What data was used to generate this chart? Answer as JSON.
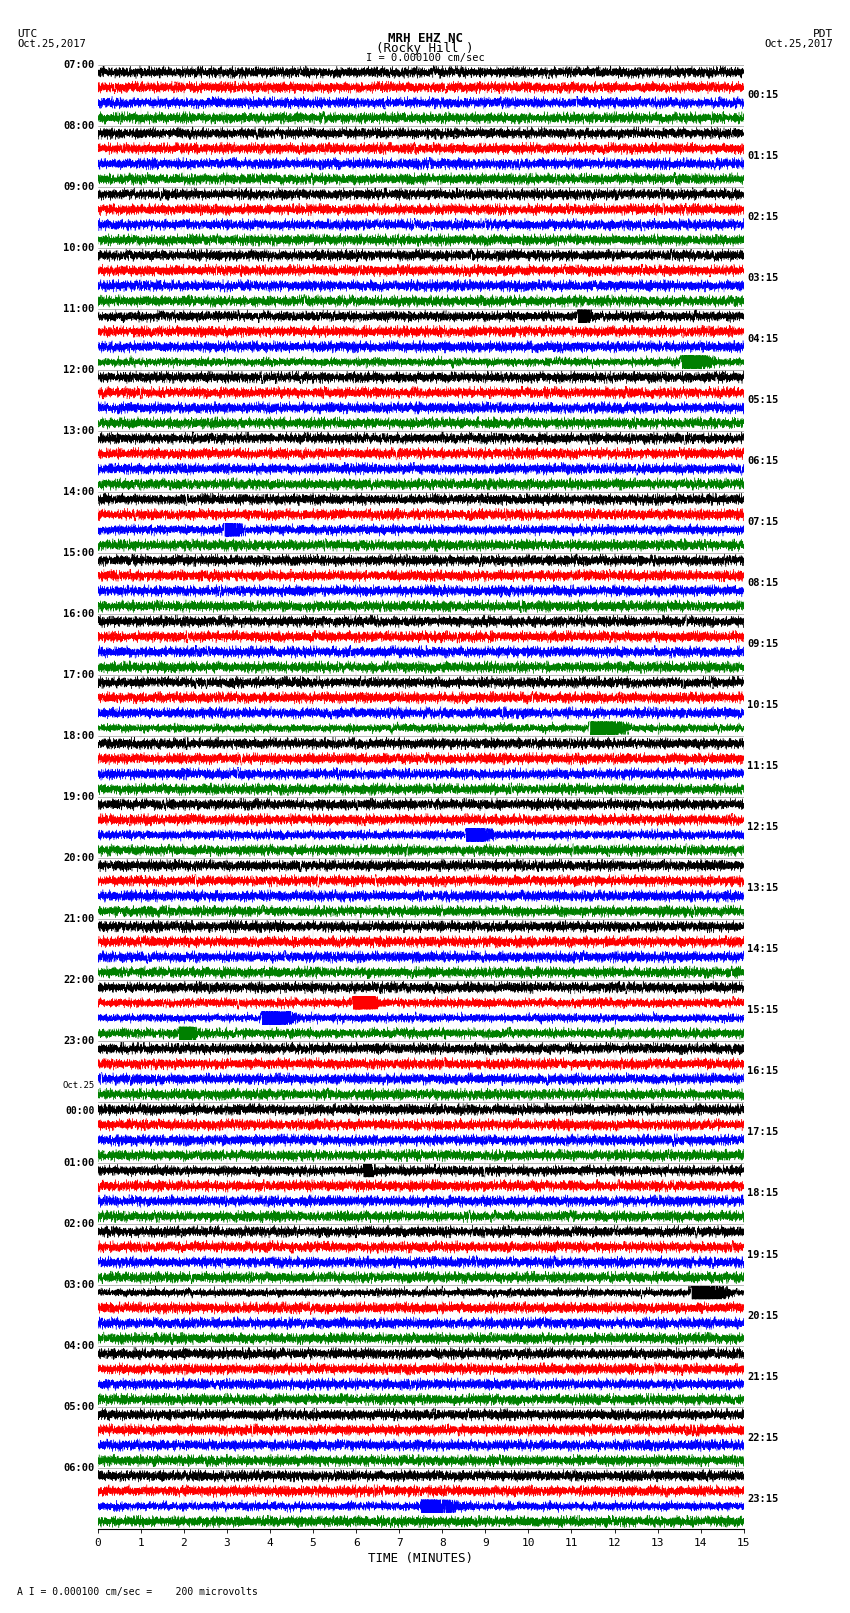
{
  "title_line1": "MRH EHZ NC",
  "title_line2": "(Rocky Hill )",
  "scale_text": "I = 0.000100 cm/sec",
  "utc_label": "UTC",
  "utc_date": "Oct.25,2017",
  "pdt_label": "PDT",
  "pdt_date": "Oct.25,2017",
  "xlabel": "TIME (MINUTES)",
  "footnote": "A I = 0.000100 cm/sec =    200 microvolts",
  "xlim": [
    0,
    15
  ],
  "xticks": [
    0,
    1,
    2,
    3,
    4,
    5,
    6,
    7,
    8,
    9,
    10,
    11,
    12,
    13,
    14,
    15
  ],
  "left_times": [
    "07:00",
    "08:00",
    "09:00",
    "10:00",
    "11:00",
    "12:00",
    "13:00",
    "14:00",
    "15:00",
    "16:00",
    "17:00",
    "18:00",
    "19:00",
    "20:00",
    "21:00",
    "22:00",
    "23:00",
    "Oct.25\n00:00",
    "01:00",
    "02:00",
    "03:00",
    "04:00",
    "05:00",
    "06:00"
  ],
  "right_times": [
    "00:15",
    "01:15",
    "02:15",
    "03:15",
    "04:15",
    "05:15",
    "06:15",
    "07:15",
    "08:15",
    "09:15",
    "10:15",
    "11:15",
    "12:15",
    "13:15",
    "14:15",
    "15:15",
    "16:15",
    "17:15",
    "18:15",
    "19:15",
    "20:15",
    "21:15",
    "22:15",
    "23:15"
  ],
  "num_rows": 24,
  "traces_per_row": 4,
  "colors": [
    "black",
    "red",
    "blue",
    "green"
  ],
  "bg_color": "white",
  "fig_width": 8.5,
  "fig_height": 16.13,
  "dpi": 100
}
